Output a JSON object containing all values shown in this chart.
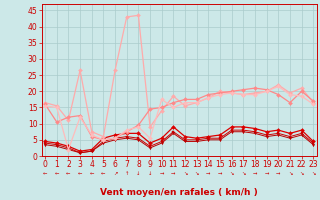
{
  "bg_color": "#cce8e8",
  "grid_color": "#aacccc",
  "xlabel": "Vent moyen/en rafales ( km/h )",
  "tick_color": "#cc0000",
  "yticks": [
    0,
    5,
    10,
    15,
    20,
    25,
    30,
    35,
    40,
    45
  ],
  "xticks": [
    0,
    1,
    2,
    3,
    4,
    5,
    6,
    7,
    8,
    9,
    10,
    11,
    12,
    13,
    14,
    15,
    16,
    17,
    18,
    19,
    20,
    21,
    22,
    23
  ],
  "xlim": [
    -0.3,
    23.3
  ],
  "ylim": [
    0,
    47
  ],
  "series": [
    {
      "x": [
        0,
        1,
        2,
        3,
        4,
        5,
        6,
        7,
        8,
        9,
        10,
        11,
        12,
        13,
        14,
        15,
        16,
        17,
        18,
        19,
        20,
        21,
        22,
        23
      ],
      "y": [
        4.5,
        4.0,
        3.0,
        1.5,
        2.0,
        5.5,
        6.5,
        7.0,
        7.0,
        4.0,
        5.5,
        9.0,
        6.0,
        5.5,
        6.0,
        6.5,
        9.0,
        9.0,
        8.5,
        7.5,
        8.0,
        7.0,
        8.0,
        4.5
      ],
      "color": "#dd0000",
      "linewidth": 0.9,
      "marker": "D",
      "markersize": 2.0
    },
    {
      "x": [
        0,
        1,
        2,
        3,
        4,
        5,
        6,
        7,
        8,
        9,
        10,
        11,
        12,
        13,
        14,
        15,
        16,
        17,
        18,
        19,
        20,
        21,
        22,
        23
      ],
      "y": [
        4.0,
        3.5,
        2.5,
        1.0,
        1.5,
        4.5,
        5.5,
        6.0,
        5.5,
        3.0,
        4.5,
        7.5,
        5.0,
        5.0,
        5.5,
        5.5,
        8.0,
        8.0,
        7.5,
        6.5,
        7.0,
        6.0,
        7.0,
        4.0
      ],
      "color": "#cc0000",
      "linewidth": 0.7,
      "marker": "s",
      "markersize": 1.8
    },
    {
      "x": [
        0,
        1,
        2,
        3,
        4,
        5,
        6,
        7,
        8,
        9,
        10,
        11,
        12,
        13,
        14,
        15,
        16,
        17,
        18,
        19,
        20,
        21,
        22,
        23
      ],
      "y": [
        3.5,
        3.0,
        2.0,
        1.0,
        1.5,
        4.0,
        5.0,
        5.5,
        5.0,
        2.5,
        4.0,
        7.0,
        4.5,
        4.5,
        5.0,
        5.0,
        7.5,
        7.5,
        7.0,
        6.0,
        6.5,
        5.5,
        6.5,
        3.5
      ],
      "color": "#bb0000",
      "linewidth": 0.7,
      "marker": "v",
      "markersize": 1.8
    },
    {
      "x": [
        0,
        1,
        2,
        3,
        4,
        5,
        6,
        7,
        8,
        9,
        10,
        11,
        12,
        13,
        14,
        15,
        16,
        17,
        18,
        19,
        20,
        21,
        22,
        23
      ],
      "y": [
        16.5,
        15.5,
        11.0,
        26.5,
        7.5,
        6.0,
        26.5,
        43.0,
        43.5,
        9.0,
        14.0,
        18.5,
        15.5,
        16.5,
        18.0,
        20.0,
        19.5,
        19.0,
        19.5,
        20.0,
        22.0,
        19.5,
        21.0,
        16.5
      ],
      "color": "#ffaaaa",
      "linewidth": 0.9,
      "marker": "D",
      "markersize": 2.0
    },
    {
      "x": [
        0,
        1,
        2,
        3,
        4,
        5,
        6,
        7,
        8,
        9,
        10,
        11,
        12,
        13,
        14,
        15,
        16,
        17,
        18,
        19,
        20,
        21,
        22,
        23
      ],
      "y": [
        16.0,
        10.5,
        12.0,
        12.5,
        6.0,
        5.0,
        5.5,
        7.5,
        9.5,
        14.5,
        15.0,
        16.5,
        17.5,
        17.5,
        19.0,
        19.5,
        20.0,
        20.5,
        21.0,
        20.5,
        19.0,
        16.5,
        20.0,
        17.0
      ],
      "color": "#ff8888",
      "linewidth": 0.9,
      "marker": "D",
      "markersize": 2.0
    },
    {
      "x": [
        0,
        1,
        2,
        3,
        4,
        5,
        6,
        7,
        8,
        9,
        10,
        11,
        12,
        13,
        14,
        15,
        16,
        17,
        18,
        19,
        20,
        21,
        22,
        23
      ],
      "y": [
        15.5,
        15.0,
        2.0,
        12.0,
        6.5,
        5.0,
        5.5,
        8.0,
        9.0,
        5.5,
        17.5,
        15.0,
        16.5,
        16.5,
        18.0,
        19.0,
        19.5,
        19.0,
        19.0,
        20.0,
        21.5,
        19.0,
        18.5,
        16.0
      ],
      "color": "#ffbbbb",
      "linewidth": 0.9,
      "marker": "D",
      "markersize": 2.0
    }
  ],
  "arrows": [
    "←",
    "←",
    "←",
    "←",
    "←",
    "←",
    "↗",
    "↑",
    "↓",
    "↓",
    "→",
    "→",
    "↘",
    "↘",
    "→",
    "→",
    "↘",
    "↘",
    "→",
    "→",
    "→",
    "↘",
    "↘",
    "↘"
  ],
  "tick_fontsize": 5.5,
  "label_fontsize": 6.5
}
